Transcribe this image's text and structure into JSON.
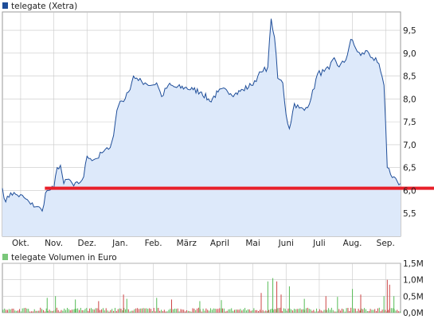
{
  "price_legend": {
    "label": "telegate (Xetra)",
    "color": "#1f4e99"
  },
  "volume_legend": {
    "label": "telegate Volumen in Euro",
    "color": "#7ac77a"
  },
  "colors": {
    "price_line": "#1f4e99",
    "price_fill": "#dde9fa",
    "grid": "#c8c8c8",
    "axis_text": "#222222",
    "reference_line": "#e8202a",
    "volume_up": "#55bb55",
    "volume_down": "#cc4444"
  },
  "chart_data": [
    {
      "type": "line",
      "title": "",
      "series": [
        {
          "name": "telegate (Xetra)"
        }
      ],
      "ylim": [
        5.0,
        9.9
      ],
      "y_ticks": [
        "5,5",
        "6,0",
        "6,5",
        "7,0",
        "7,5",
        "8,0",
        "8,5",
        "9,0",
        "9,5"
      ],
      "y_tick_values": [
        5.5,
        6.0,
        6.5,
        7.0,
        7.5,
        8.0,
        8.5,
        9.0,
        9.5
      ],
      "x_ticks": [
        "Okt.",
        "Nov.",
        "Dez.",
        "Jan.",
        "Feb.",
        "März",
        "April",
        "Mai",
        "Juni",
        "Juli",
        "Aug.",
        "Sep."
      ],
      "x_tick_month_index": [
        0,
        1,
        2,
        3,
        4,
        5,
        6,
        7,
        8,
        9,
        10,
        11
      ],
      "month_range": [
        -0.55,
        11.45
      ],
      "grid": true,
      "keypoints": [
        [
          -0.55,
          6.05
        ],
        [
          -0.45,
          5.75
        ],
        [
          -0.3,
          5.95
        ],
        [
          -0.1,
          5.9
        ],
        [
          0.1,
          5.85
        ],
        [
          0.3,
          5.7
        ],
        [
          0.5,
          5.65
        ],
        [
          0.65,
          5.55
        ],
        [
          0.75,
          5.95
        ],
        [
          0.85,
          6.0
        ],
        [
          1.0,
          6.05
        ],
        [
          1.1,
          6.5
        ],
        [
          1.2,
          6.55
        ],
        [
          1.3,
          6.15
        ],
        [
          1.45,
          6.25
        ],
        [
          1.6,
          6.1
        ],
        [
          1.75,
          6.15
        ],
        [
          1.9,
          6.3
        ],
        [
          2.0,
          6.75
        ],
        [
          2.1,
          6.7
        ],
        [
          2.3,
          6.7
        ],
        [
          2.5,
          6.85
        ],
        [
          2.65,
          6.9
        ],
        [
          2.8,
          7.2
        ],
        [
          2.9,
          7.75
        ],
        [
          3.0,
          7.95
        ],
        [
          3.15,
          8.0
        ],
        [
          3.25,
          8.15
        ],
        [
          3.4,
          8.5
        ],
        [
          3.55,
          8.4
        ],
        [
          3.75,
          8.35
        ],
        [
          3.95,
          8.3
        ],
        [
          4.1,
          8.35
        ],
        [
          4.25,
          8.05
        ],
        [
          4.45,
          8.3
        ],
        [
          4.7,
          8.25
        ],
        [
          4.95,
          8.25
        ],
        [
          5.2,
          8.2
        ],
        [
          5.45,
          8.15
        ],
        [
          5.7,
          7.95
        ],
        [
          5.95,
          8.15
        ],
        [
          6.2,
          8.2
        ],
        [
          6.45,
          8.1
        ],
        [
          6.7,
          8.2
        ],
        [
          6.95,
          8.3
        ],
        [
          7.15,
          8.5
        ],
        [
          7.3,
          8.6
        ],
        [
          7.45,
          8.7
        ],
        [
          7.55,
          9.75
        ],
        [
          7.65,
          9.35
        ],
        [
          7.75,
          8.45
        ],
        [
          7.9,
          8.35
        ],
        [
          8.0,
          7.65
        ],
        [
          8.1,
          7.35
        ],
        [
          8.25,
          7.9
        ],
        [
          8.4,
          7.8
        ],
        [
          8.55,
          7.75
        ],
        [
          8.75,
          8.0
        ],
        [
          8.95,
          8.55
        ],
        [
          9.15,
          8.6
        ],
        [
          9.3,
          8.65
        ],
        [
          9.45,
          8.9
        ],
        [
          9.6,
          8.7
        ],
        [
          9.8,
          8.85
        ],
        [
          9.95,
          9.3
        ],
        [
          10.1,
          9.1
        ],
        [
          10.25,
          8.95
        ],
        [
          10.45,
          9.05
        ],
        [
          10.6,
          8.9
        ],
        [
          10.75,
          8.8
        ],
        [
          10.85,
          8.6
        ],
        [
          10.95,
          8.3
        ],
        [
          11.05,
          6.5
        ],
        [
          11.15,
          6.35
        ],
        [
          11.25,
          6.3
        ],
        [
          11.35,
          6.2
        ],
        [
          11.45,
          6.15
        ]
      ],
      "reference_line": {
        "value": 6.05,
        "month_start": 0.73,
        "month_end": 11.45
      }
    },
    {
      "type": "bar",
      "title": "",
      "series": [
        {
          "name": "telegate Volumen in Euro"
        }
      ],
      "ylim": [
        0,
        1.5
      ],
      "y_ticks": [
        "0,0M",
        "0,5M",
        "1,0M",
        "1,5M"
      ],
      "y_tick_values": [
        0,
        0.5,
        1.0,
        1.5
      ],
      "unit": "M Euro",
      "grid": true,
      "spikes": [
        {
          "month": 0.8,
          "value": 0.45,
          "color": "up"
        },
        {
          "month": 1.05,
          "value": 0.5,
          "color": "up"
        },
        {
          "month": 1.65,
          "value": 0.4,
          "color": "up"
        },
        {
          "month": 2.35,
          "value": 0.35,
          "color": "down"
        },
        {
          "month": 3.1,
          "value": 0.55,
          "color": "down"
        },
        {
          "month": 3.2,
          "value": 0.42,
          "color": "up"
        },
        {
          "month": 4.1,
          "value": 0.45,
          "color": "up"
        },
        {
          "month": 4.55,
          "value": 0.4,
          "color": "down"
        },
        {
          "month": 5.4,
          "value": 0.35,
          "color": "up"
        },
        {
          "month": 6.05,
          "value": 0.38,
          "color": "up"
        },
        {
          "month": 7.25,
          "value": 0.6,
          "color": "down"
        },
        {
          "month": 7.45,
          "value": 0.95,
          "color": "up"
        },
        {
          "month": 7.6,
          "value": 1.05,
          "color": "up"
        },
        {
          "month": 7.72,
          "value": 0.95,
          "color": "down"
        },
        {
          "month": 7.85,
          "value": 0.55,
          "color": "down"
        },
        {
          "month": 8.1,
          "value": 0.8,
          "color": "up"
        },
        {
          "month": 8.55,
          "value": 0.42,
          "color": "up"
        },
        {
          "month": 9.2,
          "value": 0.5,
          "color": "down"
        },
        {
          "month": 9.55,
          "value": 0.48,
          "color": "up"
        },
        {
          "month": 10.0,
          "value": 0.72,
          "color": "up"
        },
        {
          "month": 10.25,
          "value": 0.55,
          "color": "down"
        },
        {
          "month": 10.95,
          "value": 0.5,
          "color": "up"
        },
        {
          "month": 11.05,
          "value": 1.0,
          "color": "down"
        },
        {
          "month": 11.12,
          "value": 0.85,
          "color": "down"
        },
        {
          "month": 11.25,
          "value": 0.5,
          "color": "up"
        }
      ]
    }
  ]
}
